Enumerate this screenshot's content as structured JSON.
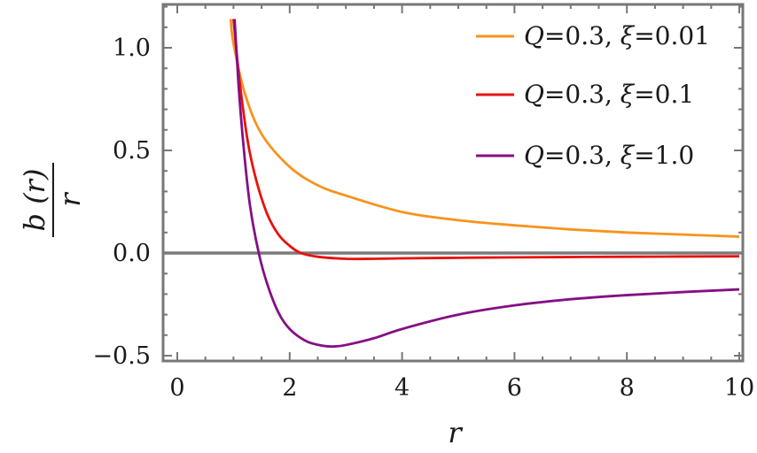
{
  "chart_data": {
    "type": "line",
    "xlabel": "r",
    "ylabel_numerator": "b (r)",
    "ylabel_denominator": "r",
    "xlim": [
      0,
      10
    ],
    "ylim": [
      -0.5,
      1.2
    ],
    "x_ticks": [
      {
        "value": 0,
        "label": "0"
      },
      {
        "value": 2,
        "label": "2"
      },
      {
        "value": 4,
        "label": "4"
      },
      {
        "value": 6,
        "label": "6"
      },
      {
        "value": 8,
        "label": "8"
      },
      {
        "value": 10,
        "label": "10"
      }
    ],
    "y_ticks": [
      {
        "value": 1.0,
        "label": "1.0"
      },
      {
        "value": 0.5,
        "label": "0.5"
      },
      {
        "value": 0.0,
        "label": "0.0"
      },
      {
        "value": -0.5,
        "label": "−0.5"
      }
    ],
    "zero_line": true,
    "legend_position": "top-right",
    "series": [
      {
        "name": "Q=0.3, ξ=0.01",
        "legend": {
          "q_sym": "Q",
          "q_val": "=0.3, ",
          "xi_sym": "ξ",
          "xi_val": "=0.01"
        },
        "color": "#f7931e",
        "x": [
          0.95,
          1.0,
          1.2,
          1.5,
          2.0,
          2.5,
          3.0,
          4.0,
          5.0,
          6.0,
          7.0,
          8.0,
          9.0,
          10.0
        ],
        "y": [
          1.14,
          1.02,
          0.78,
          0.58,
          0.42,
          0.33,
          0.28,
          0.2,
          0.16,
          0.135,
          0.115,
          0.1,
          0.09,
          0.08
        ]
      },
      {
        "name": "Q=0.3, ξ=0.1",
        "legend": {
          "q_sym": "Q",
          "q_val": "=0.3, ",
          "xi_sym": "ξ",
          "xi_val": "=0.1"
        },
        "color": "#e8120c",
        "x": [
          1.0,
          1.1,
          1.25,
          1.4,
          1.6,
          1.8,
          2.0,
          2.2,
          2.5,
          3.0,
          3.5,
          4.0,
          5.0,
          6.0,
          8.0,
          10.0
        ],
        "y": [
          1.14,
          0.86,
          0.55,
          0.36,
          0.19,
          0.09,
          0.035,
          0.0,
          -0.018,
          -0.028,
          -0.028,
          -0.026,
          -0.023,
          -0.021,
          -0.018,
          -0.016
        ]
      },
      {
        "name": "Q=0.3, ξ=1.0",
        "legend": {
          "q_sym": "Q",
          "q_val": "=0.3, ",
          "xi_sym": "ξ",
          "xi_val": "=1.0"
        },
        "color": "#850f85",
        "x": [
          1.02,
          1.1,
          1.2,
          1.3,
          1.45,
          1.6,
          1.8,
          2.0,
          2.3,
          2.6,
          2.8,
          3.0,
          3.5,
          4.0,
          5.0,
          6.0,
          7.0,
          8.0,
          9.0,
          10.0
        ],
        "y": [
          1.14,
          0.78,
          0.46,
          0.22,
          0.0,
          -0.15,
          -0.29,
          -0.37,
          -0.43,
          -0.452,
          -0.455,
          -0.448,
          -0.415,
          -0.37,
          -0.3,
          -0.255,
          -0.225,
          -0.205,
          -0.19,
          -0.177
        ]
      }
    ]
  }
}
